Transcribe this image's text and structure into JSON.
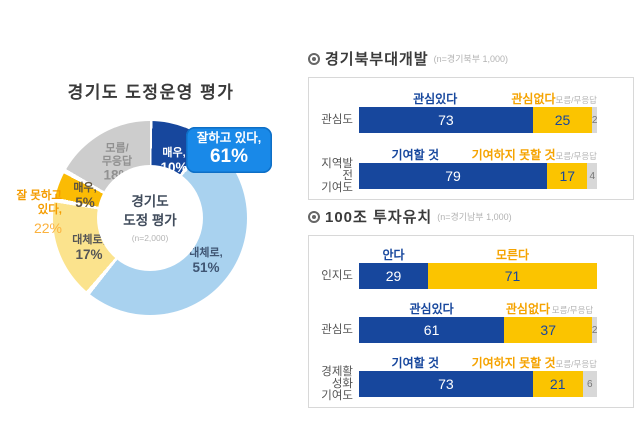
{
  "colors": {
    "positive": "#17479D",
    "negative": "#FBC400",
    "unknown": "#D8D8D8",
    "callout_bg": "#1989E8",
    "negative_label": "#F5A300"
  },
  "left_chart": {
    "title": "경기도 도정운영 평가",
    "center_title": "경기도\n도정 평가",
    "center_sample": "(n=2,000)",
    "callout": {
      "label": "잘하고 있다,",
      "value": "61%"
    },
    "negative_note": {
      "label": "잘 못하고\n있다,",
      "value": "22%"
    },
    "slices": [
      {
        "name": "매우,",
        "value_text": "10%"
      },
      {
        "name": "대체로,",
        "value_text": "51%"
      },
      {
        "name": "대체로,",
        "value_text": "17%"
      },
      {
        "name": "매우,",
        "value_text": "5%"
      },
      {
        "name": "모름/\n무응답",
        "value_text": "18%"
      }
    ]
  },
  "panels": [
    {
      "title": "경기북부대개발",
      "sample": "(n=경기북부  1,000)",
      "rows": [
        {
          "category": "관심도",
          "pos_label": "관심있다",
          "neg_label": "관심없다",
          "dk_label": "모름/무응답",
          "pos": 73,
          "neg": 25,
          "dk": 2,
          "dkw": 19,
          "pos_text": "73",
          "neg_text": "25",
          "dk_text": "2"
        },
        {
          "category": "지역발전\n기여도",
          "pos_label": "기여할 것",
          "neg_label": "기여하지 못할 것",
          "dk_label": "모름/무응답",
          "pos": 79,
          "neg": 17,
          "dk": 4,
          "dkw": 19,
          "pos_text": "79",
          "neg_text": "17",
          "dk_text": "4"
        }
      ]
    },
    {
      "title": "100조 투자유치",
      "sample": "(n=경기남부  1,000)",
      "rows": [
        {
          "category": "인지도",
          "pos_label": "안다",
          "neg_label": "모른다",
          "dk_label": "",
          "pos": 29,
          "neg": 71,
          "dk": 0,
          "dkw": 0,
          "pos_text": "29",
          "neg_text": "71",
          "dk_text": ""
        },
        {
          "category": "관심도",
          "pos_label": "관심있다",
          "neg_label": "관심없다",
          "dk_label": "모름/무응답",
          "pos": 61,
          "neg": 37,
          "dk": 2,
          "dkw": 19,
          "pos_text": "61",
          "neg_text": "37",
          "dk_text": "2"
        },
        {
          "category": "경제활성화\n기여도",
          "pos_label": "기여할 것",
          "neg_label": "기여하지 못할 것",
          "dk_label": "모름/무응답",
          "pos": 73,
          "neg": 21,
          "dk": 6,
          "dkw": 19,
          "pos_text": "73",
          "neg_text": "21",
          "dk_text": "6"
        }
      ]
    }
  ],
  "chart_data": [
    {
      "type": "pie",
      "title": "경기도 도정운영 평가",
      "center_label": "경기도 도정 평가 (n=2,000)",
      "slices": [
        {
          "label": "매우 (잘하고 있다)",
          "value": 10,
          "color": "#17479D"
        },
        {
          "label": "대체로 (잘하고 있다)",
          "value": 51,
          "color": "#A9D2EF"
        },
        {
          "label": "대체로 (잘 못하고 있다)",
          "value": 17,
          "color": "#FBE38D"
        },
        {
          "label": "매우 (잘 못하고 있다)",
          "value": 5,
          "color": "#FBBB04"
        },
        {
          "label": "모름/무응답",
          "value": 18,
          "color": "#CDCDCD"
        }
      ],
      "annotations": [
        "잘하고 있다, 61%",
        "잘 못하고 있다, 22%"
      ]
    },
    {
      "type": "bar",
      "title": "경기북부대개발 (n=경기북부 1,000)",
      "orientation": "horizontal-stacked",
      "categories": [
        "관심도",
        "지역발전 기여도"
      ],
      "series": [
        {
          "name": "긍정 (관심있다/기여할 것)",
          "color": "#17479D",
          "values": [
            73,
            79
          ]
        },
        {
          "name": "부정 (관심없다/기여하지 못할 것)",
          "color": "#FBC400",
          "values": [
            25,
            17
          ]
        },
        {
          "name": "모름/무응답",
          "color": "#D8D8D8",
          "values": [
            2,
            4
          ]
        }
      ],
      "xlim": [
        0,
        100
      ]
    },
    {
      "type": "bar",
      "title": "100조 투자유치 (n=경기남부 1,000)",
      "orientation": "horizontal-stacked",
      "categories": [
        "인지도",
        "관심도",
        "경제활성화 기여도"
      ],
      "series": [
        {
          "name": "긍정 (안다/관심있다/기여할 것)",
          "color": "#17479D",
          "values": [
            29,
            61,
            73
          ]
        },
        {
          "name": "부정 (모른다/관심없다/기여하지 못할 것)",
          "color": "#FBC400",
          "values": [
            71,
            37,
            21
          ]
        },
        {
          "name": "모름/무응답",
          "color": "#D8D8D8",
          "values": [
            0,
            2,
            6
          ]
        }
      ],
      "xlim": [
        0,
        100
      ]
    }
  ]
}
